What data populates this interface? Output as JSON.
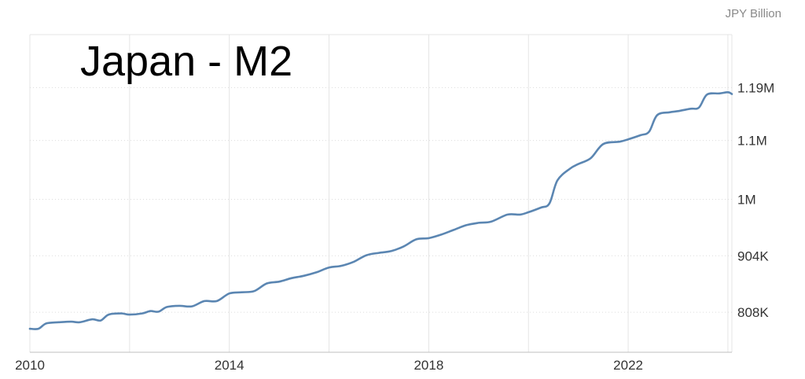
{
  "chart_data": {
    "type": "line",
    "title": "Japan - M2",
    "unit_label": "JPY Billion",
    "xlim": [
      2010.0,
      2024.08
    ],
    "ylim": [
      740000,
      1280000
    ],
    "grid": true,
    "x_ticks": [
      {
        "value": 2010,
        "label": "2010"
      },
      {
        "value": 2014,
        "label": "2014"
      },
      {
        "value": 2018,
        "label": "2018"
      },
      {
        "value": 2022,
        "label": "2022"
      }
    ],
    "x_grid": [
      2010,
      2012,
      2014,
      2016,
      2018,
      2020,
      2022,
      2024
    ],
    "y_ticks": [
      {
        "value": 808000,
        "label": "808K"
      },
      {
        "value": 904000,
        "label": "904K"
      },
      {
        "value": 1000000,
        "label": "1M"
      },
      {
        "value": 1100000,
        "label": "1.1M"
      },
      {
        "value": 1190000,
        "label": "1.19M"
      }
    ],
    "series": [
      {
        "color": "#5b86b2",
        "points": [
          [
            2010.0,
            780000
          ],
          [
            2010.17,
            780000
          ],
          [
            2010.33,
            789000
          ],
          [
            2010.58,
            791000
          ],
          [
            2010.83,
            792000
          ],
          [
            2011.0,
            791000
          ],
          [
            2011.25,
            796000
          ],
          [
            2011.42,
            794000
          ],
          [
            2011.58,
            804000
          ],
          [
            2011.83,
            806000
          ],
          [
            2012.0,
            804000
          ],
          [
            2012.25,
            806000
          ],
          [
            2012.42,
            810000
          ],
          [
            2012.58,
            809000
          ],
          [
            2012.75,
            817000
          ],
          [
            2013.0,
            819000
          ],
          [
            2013.25,
            818000
          ],
          [
            2013.5,
            827000
          ],
          [
            2013.75,
            827000
          ],
          [
            2014.0,
            840000
          ],
          [
            2014.25,
            842000
          ],
          [
            2014.5,
            844000
          ],
          [
            2014.75,
            857000
          ],
          [
            2015.0,
            860000
          ],
          [
            2015.25,
            866000
          ],
          [
            2015.5,
            870000
          ],
          [
            2015.75,
            876000
          ],
          [
            2016.0,
            884000
          ],
          [
            2016.25,
            887000
          ],
          [
            2016.5,
            894000
          ],
          [
            2016.75,
            905000
          ],
          [
            2017.0,
            909000
          ],
          [
            2017.25,
            912000
          ],
          [
            2017.5,
            920000
          ],
          [
            2017.75,
            932000
          ],
          [
            2018.0,
            934000
          ],
          [
            2018.25,
            940000
          ],
          [
            2018.5,
            948000
          ],
          [
            2018.75,
            956000
          ],
          [
            2019.0,
            960000
          ],
          [
            2019.25,
            962000
          ],
          [
            2019.58,
            974000
          ],
          [
            2019.83,
            974000
          ],
          [
            2020.0,
            978000
          ],
          [
            2020.25,
            986000
          ],
          [
            2020.42,
            993000
          ],
          [
            2020.58,
            1032000
          ],
          [
            2020.83,
            1052000
          ],
          [
            2021.0,
            1060000
          ],
          [
            2021.25,
            1070000
          ],
          [
            2021.5,
            1094000
          ],
          [
            2021.83,
            1098000
          ],
          [
            2022.0,
            1102000
          ],
          [
            2022.25,
            1109000
          ],
          [
            2022.42,
            1115000
          ],
          [
            2022.58,
            1143000
          ],
          [
            2022.83,
            1148000
          ],
          [
            2023.0,
            1150000
          ],
          [
            2023.25,
            1154000
          ],
          [
            2023.42,
            1156000
          ],
          [
            2023.58,
            1178000
          ],
          [
            2023.83,
            1180000
          ],
          [
            2024.0,
            1182000
          ],
          [
            2024.08,
            1179000
          ]
        ]
      }
    ]
  }
}
